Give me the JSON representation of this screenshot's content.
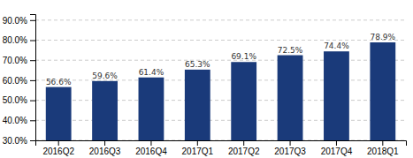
{
  "chart_data": {
    "type": "bar",
    "categories": [
      "2016Q2",
      "2016Q3",
      "2016Q4",
      "2017Q1",
      "2017Q2",
      "2017Q3",
      "2017Q4",
      "2018Q1"
    ],
    "values": [
      56.6,
      59.6,
      61.4,
      65.3,
      69.1,
      72.5,
      74.4,
      78.9
    ],
    "value_labels": [
      "56.6%",
      "59.6%",
      "61.4%",
      "65.3%",
      "69.1%",
      "72.5%",
      "74.4%",
      "78.9%"
    ],
    "data_labels": true,
    "color": "#1a3a7a",
    "ylim": [
      30,
      93
    ],
    "yticks": [
      {
        "value": 30.0,
        "label": "30.0%"
      },
      {
        "value": 40.0,
        "label": "40.0%"
      },
      {
        "value": 50.0,
        "label": "50.0%"
      },
      {
        "value": 60.0,
        "label": "60.0%"
      },
      {
        "value": 70.0,
        "label": "70.0%"
      },
      {
        "value": 80.0,
        "label": "80.0%"
      },
      {
        "value": 90.0,
        "label": "90.0%"
      }
    ],
    "grid": true
  }
}
